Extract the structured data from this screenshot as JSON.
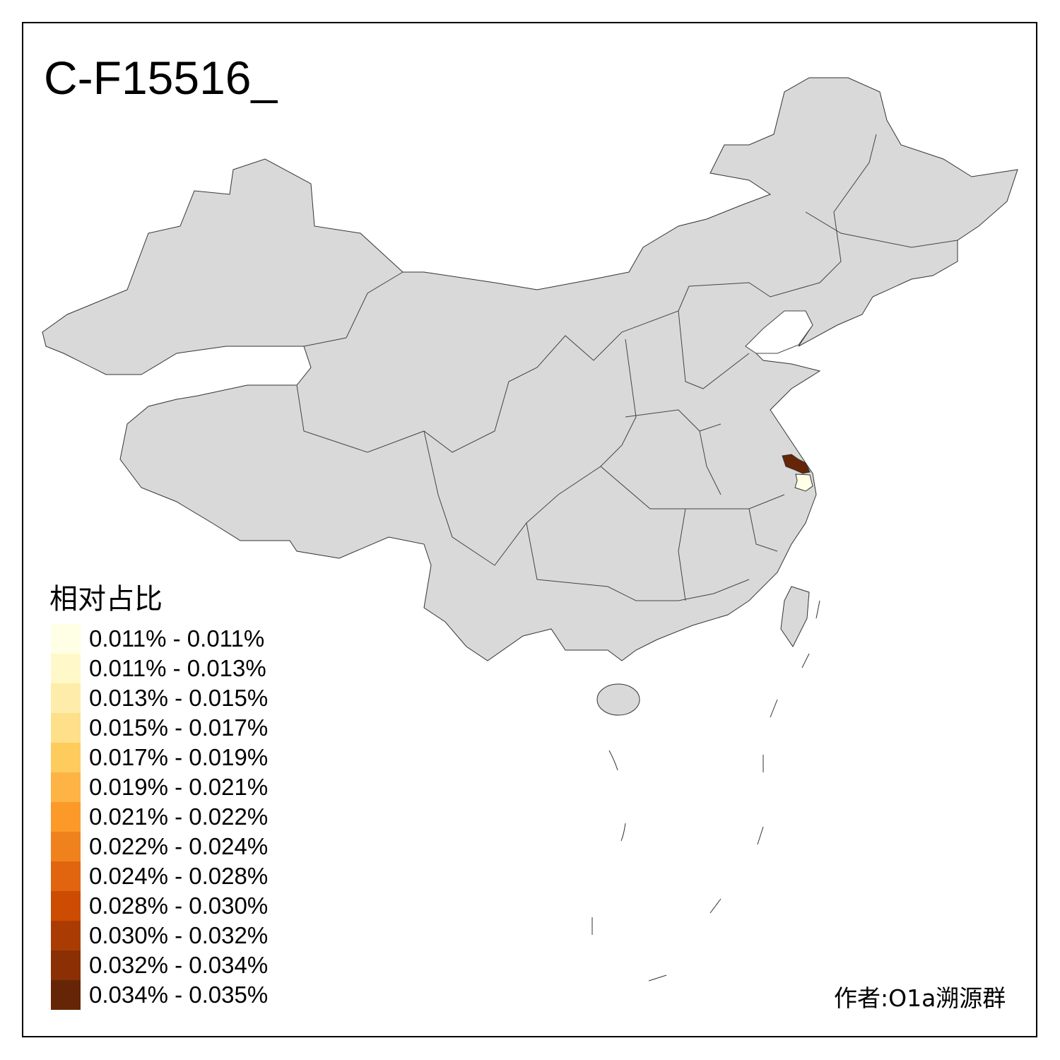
{
  "title": "C-F15516_",
  "legend": {
    "title": "相对占比",
    "items": [
      {
        "label": "0.011% - 0.011%",
        "color": "#FFFFE5"
      },
      {
        "label": "0.011% - 0.013%",
        "color": "#FFF8C9"
      },
      {
        "label": "0.013% - 0.015%",
        "color": "#FEEDAA"
      },
      {
        "label": "0.015% - 0.017%",
        "color": "#FEE08B"
      },
      {
        "label": "0.017% - 0.019%",
        "color": "#FECC5C"
      },
      {
        "label": "0.019% - 0.021%",
        "color": "#FDB445"
      },
      {
        "label": "0.021% - 0.022%",
        "color": "#FB9A29"
      },
      {
        "label": "0.022% - 0.024%",
        "color": "#F0821E"
      },
      {
        "label": "0.024% - 0.028%",
        "color": "#E1640E"
      },
      {
        "label": "0.028% - 0.030%",
        "color": "#CC4C02"
      },
      {
        "label": "0.030% - 0.032%",
        "color": "#AA3C03"
      },
      {
        "label": "0.032% - 0.034%",
        "color": "#8A3004"
      },
      {
        "label": "0.034% - 0.035%",
        "color": "#662506"
      }
    ]
  },
  "map": {
    "base_color": "#D9D9D9",
    "highlighted_regions": [
      {
        "bin": "0.034% - 0.035%",
        "color": "#662506"
      },
      {
        "bin": "0.011% - 0.011%",
        "color": "#FFFFE5"
      }
    ]
  },
  "author": "作者:O1a溯源群"
}
